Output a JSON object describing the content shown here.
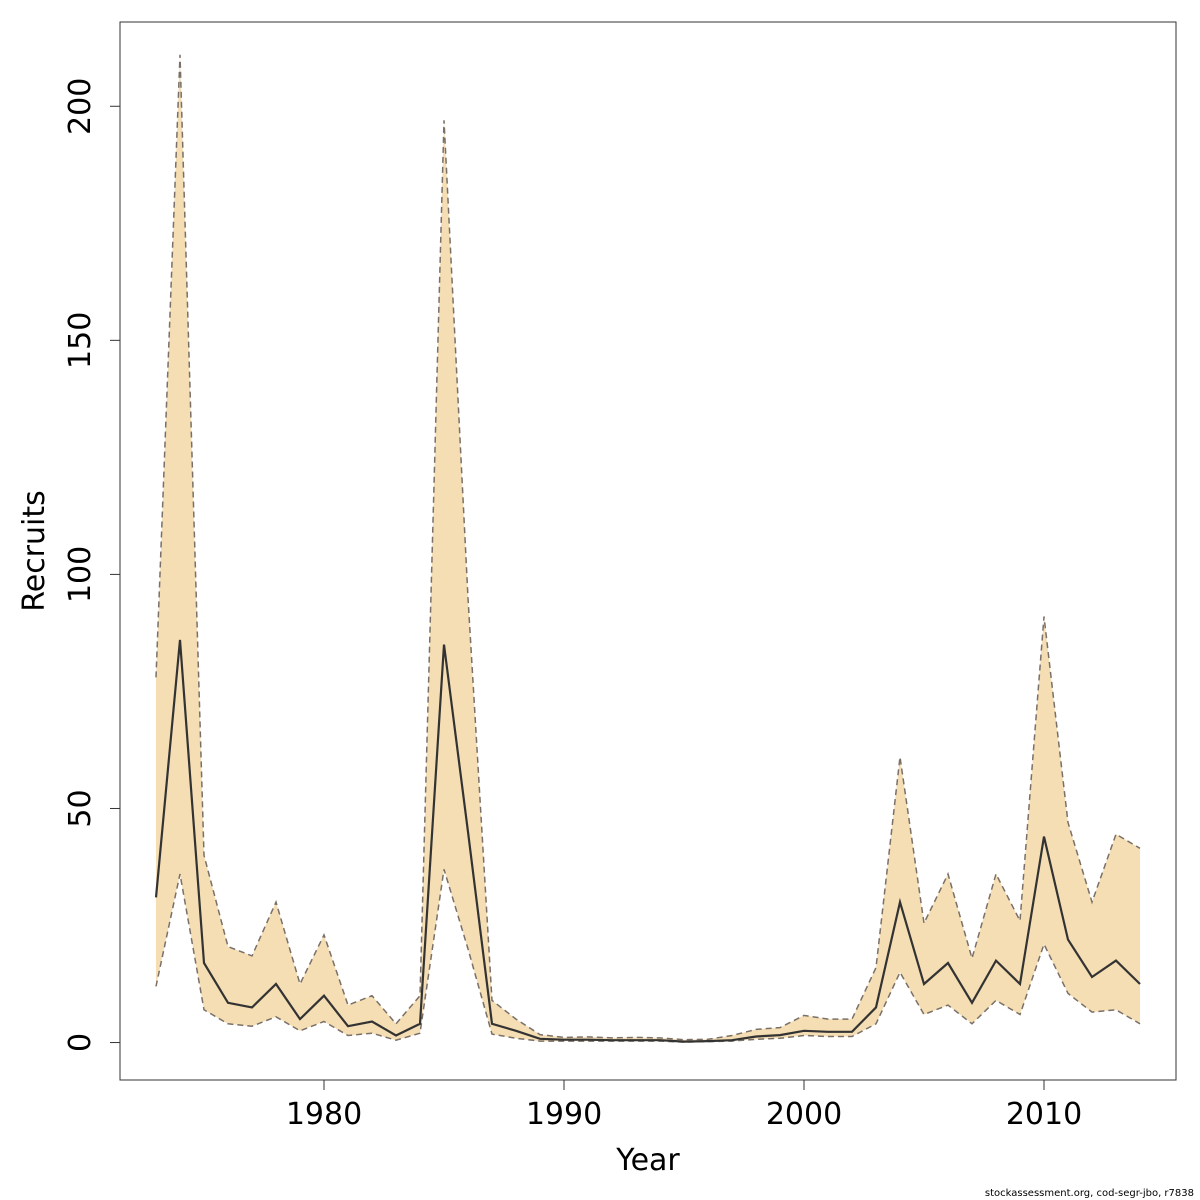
{
  "chart_data": {
    "type": "area",
    "xlabel": "Year",
    "ylabel": "Recruits",
    "xlim": [
      1971.5,
      2015.5
    ],
    "ylim": [
      -8,
      218
    ],
    "x_ticks": [
      1980,
      1990,
      2000,
      2010
    ],
    "y_ticks": [
      0,
      50,
      100,
      150,
      200
    ],
    "grid": false,
    "legend": "none",
    "colors": {
      "band": "#f5deb3",
      "line": "#333333",
      "bound_line": "#7a7068",
      "frame": "#333333"
    },
    "series": [
      {
        "x": [
          1973,
          1974,
          1975,
          1976,
          1977,
          1978,
          1979,
          1980,
          1981,
          1982,
          1983,
          1984,
          1985,
          1986,
          1987,
          1988,
          1989,
          1990,
          1991,
          1992,
          1993,
          1994,
          1995,
          1996,
          1997,
          1998,
          1999,
          2000,
          2001,
          2002,
          2003,
          2004,
          2005,
          2006,
          2007,
          2008,
          2009,
          2010,
          2011,
          2012,
          2013,
          2014
        ],
        "values": [
          31,
          86,
          17,
          8.5,
          7.5,
          12.5,
          5,
          10,
          3.5,
          4.5,
          1.5,
          4,
          85,
          45,
          4,
          2.5,
          0.8,
          0.6,
          0.6,
          0.5,
          0.5,
          0.5,
          0.2,
          0.3,
          0.5,
          1.3,
          1.6,
          2.5,
          2.3,
          2.3,
          7.5,
          30,
          12.5,
          17,
          8.5,
          17.5,
          12.5,
          44,
          22,
          14,
          17.5,
          12.5
        ],
        "lower": [
          12,
          36,
          7,
          4,
          3.5,
          5.5,
          2.5,
          4.5,
          1.5,
          2,
          0.5,
          2,
          37,
          20,
          1.8,
          0.9,
          0.3,
          0.3,
          0.3,
          0.3,
          0.3,
          0.3,
          0.1,
          0.2,
          0.3,
          0.7,
          0.9,
          1.5,
          1.3,
          1.3,
          4,
          15,
          6,
          8,
          4,
          9,
          6,
          21,
          10.5,
          6.5,
          7,
          4
        ],
        "upper": [
          78,
          211,
          40,
          20.5,
          18.5,
          30,
          12.5,
          23,
          8,
          10,
          4,
          10,
          197,
          95,
          9,
          5,
          1.7,
          1.1,
          1.2,
          1,
          1.1,
          1,
          0.6,
          0.7,
          1.5,
          2.8,
          3.2,
          5.8,
          5,
          5,
          16,
          61,
          25.5,
          36,
          18,
          36,
          26,
          91,
          47,
          30,
          44.5,
          41.5
        ]
      }
    ]
  },
  "footer_text": "stockassessment.org, cod-segr-jbo, r7838"
}
